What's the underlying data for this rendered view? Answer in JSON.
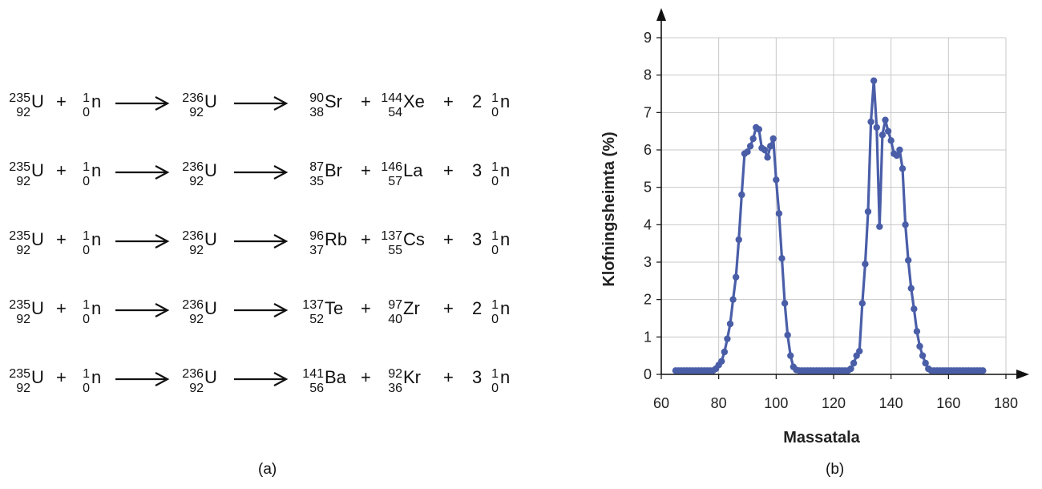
{
  "equations": [
    {
      "reactant": {
        "mass": "235",
        "atomic": "92",
        "symbol": "U"
      },
      "neutron": {
        "mass": "1",
        "atomic": "0",
        "symbol": "n"
      },
      "compound": {
        "mass": "236",
        "atomic": "92",
        "symbol": "U"
      },
      "product1": {
        "mass": "90",
        "atomic": "38",
        "symbol": "Sr"
      },
      "product2": {
        "mass": "144",
        "atomic": "54",
        "symbol": "Xe"
      },
      "coef": "2",
      "plus": "+"
    },
    {
      "reactant": {
        "mass": "235",
        "atomic": "92",
        "symbol": "U"
      },
      "neutron": {
        "mass": "1",
        "atomic": "0",
        "symbol": "n"
      },
      "compound": {
        "mass": "236",
        "atomic": "92",
        "symbol": "U"
      },
      "product1": {
        "mass": "87",
        "atomic": "35",
        "symbol": "Br"
      },
      "product2": {
        "mass": "146",
        "atomic": "57",
        "symbol": "La"
      },
      "coef": "3",
      "plus": "+"
    },
    {
      "reactant": {
        "mass": "235",
        "atomic": "92",
        "symbol": "U"
      },
      "neutron": {
        "mass": "1",
        "atomic": "0",
        "symbol": "n"
      },
      "compound": {
        "mass": "236",
        "atomic": "92",
        "symbol": "U"
      },
      "product1": {
        "mass": "96",
        "atomic": "37",
        "symbol": "Rb"
      },
      "product2": {
        "mass": "137",
        "atomic": "55",
        "symbol": "Cs"
      },
      "coef": "3",
      "plus": "+"
    },
    {
      "reactant": {
        "mass": "235",
        "atomic": "92",
        "symbol": "U"
      },
      "neutron": {
        "mass": "1",
        "atomic": "0",
        "symbol": "n"
      },
      "compound": {
        "mass": "236",
        "atomic": "92",
        "symbol": "U"
      },
      "product1": {
        "mass": "137",
        "atomic": "52",
        "symbol": "Te"
      },
      "product2": {
        "mass": "97",
        "atomic": "40",
        "symbol": "Zr"
      },
      "coef": "2",
      "plus": "+"
    },
    {
      "reactant": {
        "mass": "235",
        "atomic": "92",
        "symbol": "U"
      },
      "neutron": {
        "mass": "1",
        "atomic": "0",
        "symbol": "n"
      },
      "compound": {
        "mass": "236",
        "atomic": "92",
        "symbol": "U"
      },
      "product1": {
        "mass": "141",
        "atomic": "56",
        "symbol": "Ba"
      },
      "product2": {
        "mass": "92",
        "atomic": "36",
        "symbol": "Kr"
      },
      "coef": "3",
      "plus": "+"
    }
  ],
  "captions": {
    "left": "(a)",
    "right": "(b)"
  },
  "chart_data": {
    "type": "line",
    "xlabel": "Massatala",
    "ylabel": "Klofningsheimta (%)",
    "xlim": [
      60,
      180
    ],
    "ylim": [
      0,
      9
    ],
    "xticks": [
      "60",
      "80",
      "100",
      "120",
      "140",
      "160",
      "180"
    ],
    "yticks": [
      "0",
      "1",
      "2",
      "3",
      "4",
      "5",
      "6",
      "7",
      "8",
      "9"
    ],
    "grid": true,
    "color": "#4a5ea8",
    "x": [
      65,
      66,
      67,
      68,
      69,
      70,
      71,
      72,
      73,
      74,
      75,
      76,
      77,
      78,
      79,
      80,
      81,
      82,
      83,
      84,
      85,
      86,
      87,
      88,
      89,
      90,
      91,
      92,
      93,
      94,
      95,
      96,
      97,
      98,
      99,
      100,
      101,
      102,
      103,
      104,
      105,
      106,
      107,
      108,
      109,
      110,
      111,
      112,
      113,
      114,
      115,
      116,
      117,
      118,
      119,
      120,
      121,
      122,
      123,
      124,
      125,
      126,
      127,
      128,
      129,
      130,
      131,
      132,
      133,
      134,
      135,
      136,
      137,
      138,
      139,
      140,
      141,
      142,
      143,
      144,
      145,
      146,
      147,
      148,
      149,
      150,
      151,
      152,
      153,
      154,
      155,
      156,
      157,
      158,
      159,
      160,
      161,
      162,
      163,
      164,
      165,
      166,
      167,
      168,
      169,
      170,
      171,
      172
    ],
    "values": [
      0.1,
      0.1,
      0.1,
      0.1,
      0.1,
      0.1,
      0.1,
      0.1,
      0.1,
      0.1,
      0.1,
      0.1,
      0.1,
      0.1,
      0.15,
      0.25,
      0.35,
      0.6,
      0.95,
      1.35,
      2.0,
      2.6,
      3.6,
      4.8,
      5.9,
      5.95,
      6.1,
      6.3,
      6.6,
      6.55,
      6.05,
      6.0,
      5.8,
      6.1,
      6.3,
      5.2,
      4.3,
      3.1,
      1.9,
      1.05,
      0.5,
      0.2,
      0.12,
      0.1,
      0.1,
      0.1,
      0.1,
      0.1,
      0.1,
      0.1,
      0.1,
      0.1,
      0.1,
      0.1,
      0.1,
      0.1,
      0.1,
      0.1,
      0.1,
      0.1,
      0.1,
      0.15,
      0.3,
      0.5,
      0.62,
      1.9,
      2.95,
      4.35,
      6.75,
      7.85,
      6.6,
      3.95,
      6.4,
      6.8,
      6.5,
      6.25,
      5.9,
      5.85,
      6.0,
      5.5,
      4.0,
      3.05,
      2.3,
      1.75,
      1.15,
      0.75,
      0.5,
      0.3,
      0.15,
      0.1,
      0.1,
      0.1,
      0.1,
      0.1,
      0.1,
      0.1,
      0.1,
      0.1,
      0.1,
      0.1,
      0.1,
      0.1,
      0.1,
      0.1,
      0.1,
      0.1,
      0.1,
      0.1
    ]
  }
}
